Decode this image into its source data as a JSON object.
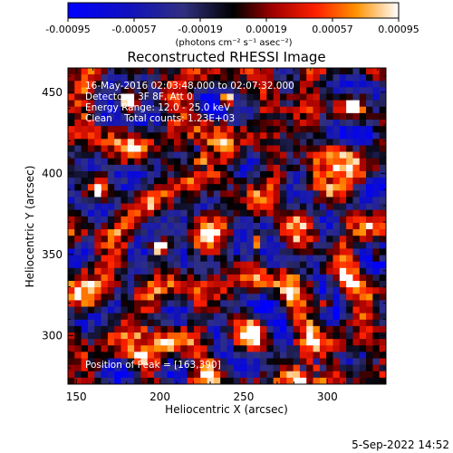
{
  "chart_data": {
    "type": "heatmap",
    "title": "Reconstructed RHESSI Image",
    "xlabel": "Heliocentric X (arcsec)",
    "ylabel": "Heliocentric Y (arcsec)",
    "xlim": [
      145,
      335
    ],
    "ylim": [
      270,
      465
    ],
    "x_ticks": [
      150,
      200,
      250,
      300
    ],
    "y_ticks": [
      300,
      350,
      400,
      450
    ],
    "colorbar": {
      "range": [
        -0.00095,
        0.00095
      ],
      "tick_labels": [
        "-0.00095",
        "-0.00057",
        "-0.00019",
        "0.00019",
        "0.00057",
        "0.00095"
      ],
      "unit_label": "(photons cm⁻² s⁻¹ asec⁻²)"
    },
    "annotations": [
      "16-May-2016 02:03:48.000 to 02:07:32.000",
      "Detectors: 3F 8F, Att 0",
      "Energy Range: 12.0 - 25.0 keV",
      "Clean    Total counts: 1.23E+03"
    ],
    "peak_label": "Position of Peak = [163,390]",
    "peak": [
      163,
      390
    ],
    "grid_cols": 48,
    "grid_rows": 49,
    "ring_centers": [
      [
        163,
        390
      ],
      [
        200,
        355
      ],
      [
        258,
        358
      ],
      [
        300,
        320
      ],
      [
        225,
        410
      ],
      [
        190,
        300
      ],
      [
        305,
        400
      ],
      [
        160,
        330
      ],
      [
        255,
        300
      ],
      [
        315,
        440
      ],
      [
        180,
        445
      ],
      [
        240,
        445
      ],
      [
        330,
        350
      ],
      [
        210,
        280
      ],
      [
        290,
        280
      ]
    ],
    "grid": false
  },
  "footer_date": "5-Sep-2022 14:52"
}
